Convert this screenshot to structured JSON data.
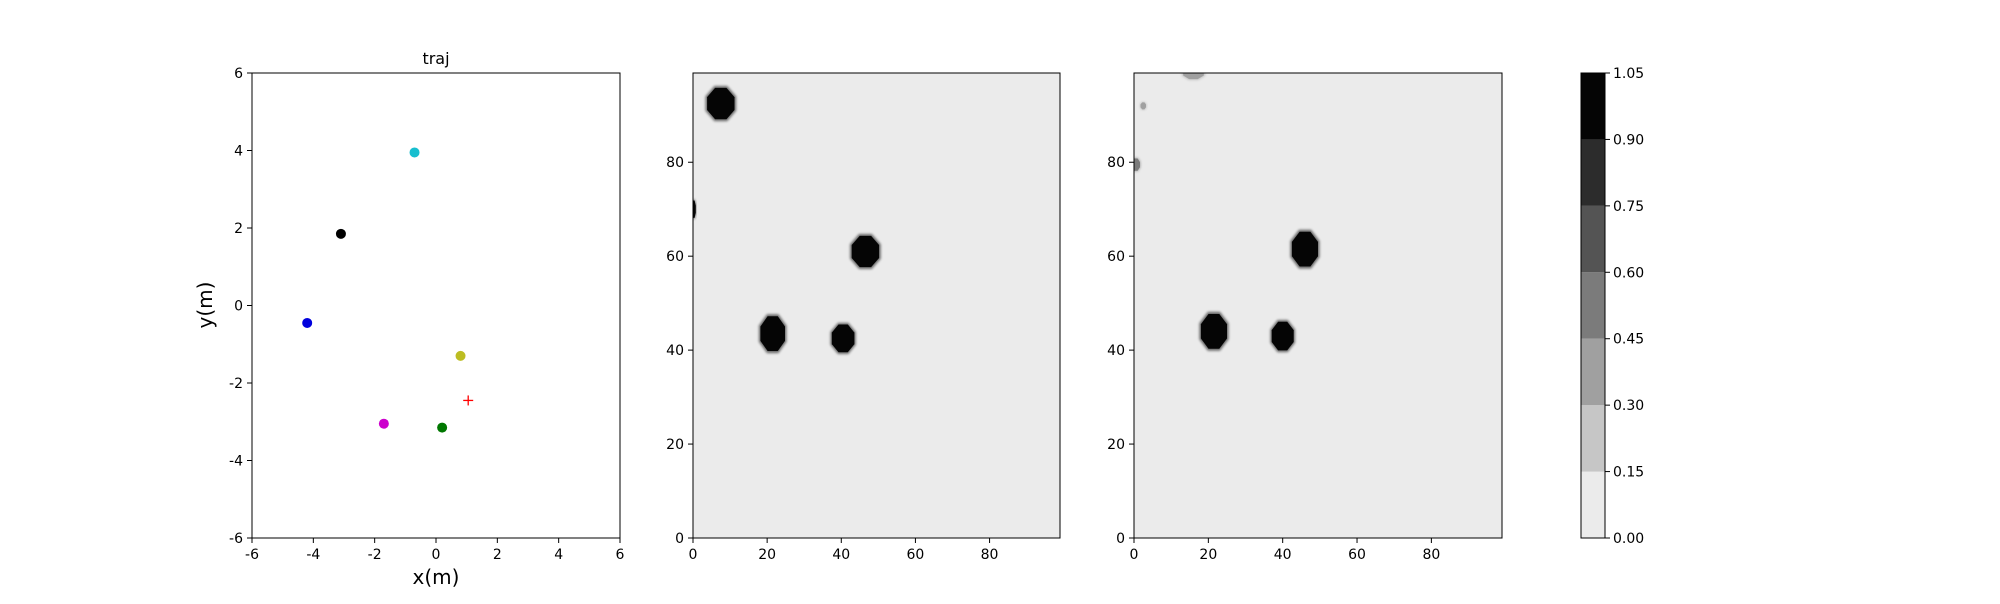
{
  "chart_data": [
    {
      "type": "scatter",
      "title": "traj",
      "xlabel": "x(m)",
      "ylabel": "y(m)",
      "xlim": [
        -6,
        6
      ],
      "ylim": [
        -6,
        6
      ],
      "xticks": [
        -6,
        -4,
        -2,
        0,
        2,
        4,
        6
      ],
      "yticks": [
        -6,
        -4,
        -2,
        0,
        2,
        4,
        6
      ],
      "grid": false,
      "points": [
        {
          "x": -0.7,
          "y": 3.95,
          "color": "#17becf",
          "marker": "circle"
        },
        {
          "x": -3.1,
          "y": 1.85,
          "color": "#000000",
          "marker": "circle"
        },
        {
          "x": -4.2,
          "y": -0.45,
          "color": "#0000dd",
          "marker": "circle"
        },
        {
          "x": 0.8,
          "y": -1.3,
          "color": "#bcbd22",
          "marker": "circle"
        },
        {
          "x": -1.7,
          "y": -3.05,
          "color": "#cc00cc",
          "marker": "circle"
        },
        {
          "x": 0.2,
          "y": -3.15,
          "color": "#007700",
          "marker": "circle"
        },
        {
          "x": 1.05,
          "y": -2.45,
          "color": "#ff0000",
          "marker": "plus"
        }
      ]
    },
    {
      "type": "heatmap",
      "xlim": [
        0,
        99
      ],
      "ylim": [
        0,
        99
      ],
      "xticks": [
        0,
        20,
        40,
        60,
        80
      ],
      "yticks": [
        0,
        20,
        40,
        60,
        80
      ],
      "background_value": 0.05,
      "blobs": [
        {
          "x": 7.5,
          "y": 92.5,
          "rx": 4,
          "ry": 3.6,
          "value": 1.0
        },
        {
          "x": 46.5,
          "y": 61.0,
          "rx": 4,
          "ry": 3.6,
          "value": 1.0
        },
        {
          "x": 21.5,
          "y": 43.5,
          "rx": 3.6,
          "ry": 4,
          "value": 1.0
        },
        {
          "x": 40.5,
          "y": 42.5,
          "rx": 3.3,
          "ry": 3.2,
          "value": 1.0
        },
        {
          "x": 0.2,
          "y": 70.0,
          "rx": 0.6,
          "ry": 2,
          "value": 1.0
        }
      ]
    },
    {
      "type": "heatmap",
      "xlim": [
        0,
        99
      ],
      "ylim": [
        0,
        99
      ],
      "xticks": [
        0,
        20,
        40,
        60,
        80
      ],
      "yticks": [
        0,
        20,
        40,
        60,
        80
      ],
      "background_value": 0.05,
      "blobs": [
        {
          "x": 46.0,
          "y": 61.5,
          "rx": 3.8,
          "ry": 4,
          "value": 1.0
        },
        {
          "x": 21.5,
          "y": 44.0,
          "rx": 3.8,
          "ry": 4,
          "value": 1.0
        },
        {
          "x": 40.0,
          "y": 43.0,
          "rx": 3.2,
          "ry": 3.3,
          "value": 1.0
        },
        {
          "x": 16.0,
          "y": 99.0,
          "rx": 3,
          "ry": 1.4,
          "value": 0.4
        },
        {
          "x": 2.5,
          "y": 92.0,
          "rx": 0.8,
          "ry": 0.8,
          "value": 0.3
        },
        {
          "x": 0.5,
          "y": 79.5,
          "rx": 1.2,
          "ry": 1.4,
          "value": 0.5
        }
      ]
    }
  ],
  "colorbar": {
    "levels": [
      0.0,
      0.15,
      0.3,
      0.45,
      0.6,
      0.75,
      0.9,
      1.05
    ],
    "tick_labels": [
      "0.00",
      "0.15",
      "0.30",
      "0.45",
      "0.60",
      "0.75",
      "0.90",
      "1.05"
    ],
    "colors": [
      "#ebebeb",
      "#c6c6c6",
      "#a0a0a0",
      "#7b7b7b",
      "#545454",
      "#2c2c2c",
      "#050505"
    ]
  }
}
